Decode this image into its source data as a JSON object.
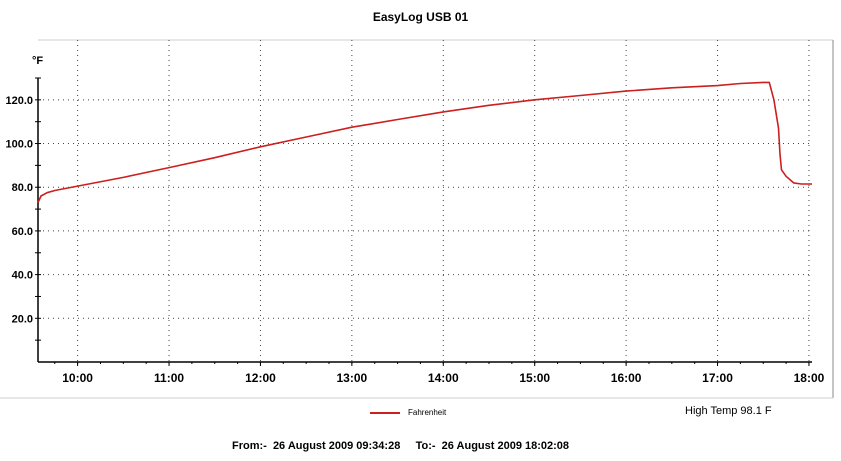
{
  "chart_data": {
    "type": "line",
    "title": "EasyLog USB 01",
    "ylabel": "°F",
    "xlabel": "",
    "ylim": [
      0,
      130
    ],
    "xlim": [
      "09:34",
      "18:02"
    ],
    "yticks": [
      "20.0",
      "40.0",
      "60.0",
      "80.0",
      "100.0",
      "120.0"
    ],
    "xticks": [
      "10:00",
      "11:00",
      "12:00",
      "13:00",
      "14:00",
      "15:00",
      "16:00",
      "17:00",
      "18:00"
    ],
    "grid": true,
    "legend_position": "bottom-center",
    "series": [
      {
        "name": "Fahrenheit",
        "color": "#cc1f1f",
        "points": [
          [
            "09:34",
            73
          ],
          [
            "09:36",
            76
          ],
          [
            "09:40",
            77.5
          ],
          [
            "09:45",
            78.5
          ],
          [
            "10:00",
            80.5
          ],
          [
            "10:30",
            84.5
          ],
          [
            "11:00",
            89
          ],
          [
            "11:30",
            93.5
          ],
          [
            "12:00",
            98.5
          ],
          [
            "12:30",
            103
          ],
          [
            "13:00",
            107.5
          ],
          [
            "13:30",
            111
          ],
          [
            "14:00",
            114.5
          ],
          [
            "14:30",
            117.5
          ],
          [
            "15:00",
            120
          ],
          [
            "15:30",
            122
          ],
          [
            "16:00",
            124
          ],
          [
            "16:30",
            125.5
          ],
          [
            "17:00",
            126.5
          ],
          [
            "17:15",
            127.5
          ],
          [
            "17:30",
            128
          ],
          [
            "17:34",
            128
          ],
          [
            "17:37",
            120
          ],
          [
            "17:40",
            107
          ],
          [
            "17:41",
            95
          ],
          [
            "17:42",
            88
          ],
          [
            "17:45",
            85
          ],
          [
            "17:50",
            82
          ],
          [
            "17:55",
            81.5
          ],
          [
            "18:02",
            81.5
          ]
        ]
      }
    ]
  },
  "legend_label": "Fahrenheit",
  "high_temp": "High Temp 98.1 F",
  "range_text": "From:-  26 August 2009 09:34:28     To:-  26 August 2009 18:02:08"
}
